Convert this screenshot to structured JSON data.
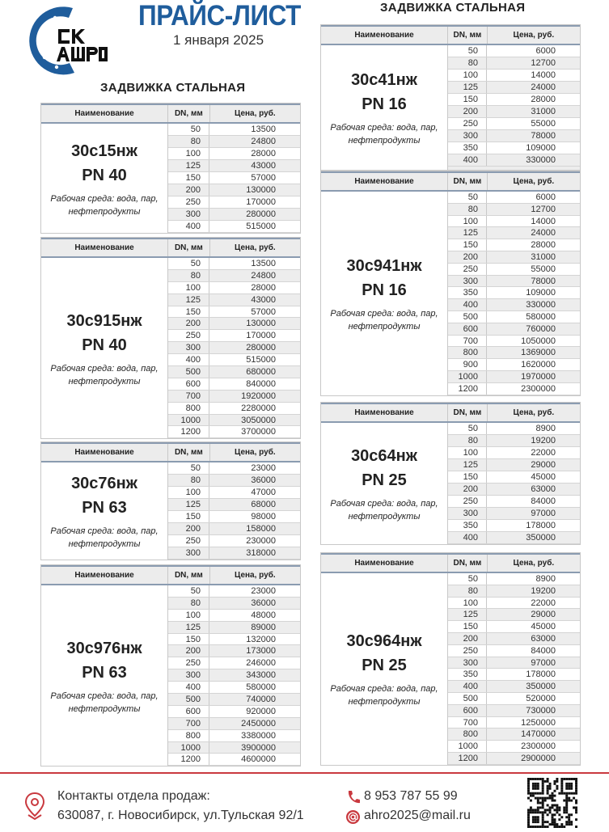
{
  "header": {
    "logo_text": [
      "СК",
      "АШРО"
    ],
    "title": "ПРАЙС-ЛИСТ",
    "date": "1 января 2025",
    "brand_color": "#1f5d9c"
  },
  "sections": {
    "left_heading": "ЗАДВИЖКА СТАЛЬНАЯ",
    "right_heading": "ЗАДВИЖКА СТАЛЬНАЯ"
  },
  "columns": {
    "name": "Наименование",
    "dn": "DN, мм",
    "price": "Цена, руб."
  },
  "tables": [
    {
      "model": "30с15нж",
      "pn": "PN 40",
      "note": "Рабочая среда: вода, пар, нефтепродукты",
      "rows": [
        [
          "50",
          "13500"
        ],
        [
          "80",
          "24800"
        ],
        [
          "100",
          "28000"
        ],
        [
          "125",
          "43000"
        ],
        [
          "150",
          "57000"
        ],
        [
          "200",
          "130000"
        ],
        [
          "250",
          "170000"
        ],
        [
          "300",
          "280000"
        ],
        [
          "400",
          "515000"
        ]
      ]
    },
    {
      "model": "30с915нж",
      "pn": "PN 40",
      "note": "Рабочая среда: вода, пар, нефтепродукты",
      "rows": [
        [
          "50",
          "13500"
        ],
        [
          "80",
          "24800"
        ],
        [
          "100",
          "28000"
        ],
        [
          "125",
          "43000"
        ],
        [
          "150",
          "57000"
        ],
        [
          "200",
          "130000"
        ],
        [
          "250",
          "170000"
        ],
        [
          "300",
          "280000"
        ],
        [
          "400",
          "515000"
        ],
        [
          "500",
          "680000"
        ],
        [
          "600",
          "840000"
        ],
        [
          "700",
          "1920000"
        ],
        [
          "800",
          "2280000"
        ],
        [
          "1000",
          "3050000"
        ],
        [
          "1200",
          "3700000"
        ]
      ]
    },
    {
      "model": "30с76нж",
      "pn": "PN 63",
      "note": "Рабочая среда: вода, пар, нефтепродукты",
      "rows": [
        [
          "50",
          "23000"
        ],
        [
          "80",
          "36000"
        ],
        [
          "100",
          "47000"
        ],
        [
          "125",
          "68000"
        ],
        [
          "150",
          "98000"
        ],
        [
          "200",
          "158000"
        ],
        [
          "250",
          "230000"
        ],
        [
          "300",
          "318000"
        ]
      ]
    },
    {
      "model": "30с976нж",
      "pn": "PN 63",
      "note": "Рабочая среда: вода, пар, нефтепродукты",
      "rows": [
        [
          "50",
          "23000"
        ],
        [
          "80",
          "36000"
        ],
        [
          "100",
          "48000"
        ],
        [
          "125",
          "89000"
        ],
        [
          "150",
          "132000"
        ],
        [
          "200",
          "173000"
        ],
        [
          "250",
          "246000"
        ],
        [
          "300",
          "343000"
        ],
        [
          "400",
          "580000"
        ],
        [
          "500",
          "740000"
        ],
        [
          "600",
          "920000"
        ],
        [
          "700",
          "2450000"
        ],
        [
          "800",
          "3380000"
        ],
        [
          "1000",
          "3900000"
        ],
        [
          "1200",
          "4600000"
        ]
      ]
    },
    {
      "model": "30с41нж",
      "pn": "PN 16",
      "note": "Рабочая среда: вода, пар, нефтепродукты",
      "rows": [
        [
          "50",
          "6000"
        ],
        [
          "80",
          "12700"
        ],
        [
          "100",
          "14000"
        ],
        [
          "125",
          "24000"
        ],
        [
          "150",
          "28000"
        ],
        [
          "200",
          "31000"
        ],
        [
          "250",
          "55000"
        ],
        [
          "300",
          "78000"
        ],
        [
          "350",
          "109000"
        ],
        [
          "400",
          "330000"
        ]
      ]
    },
    {
      "model": "30с941нж",
      "pn": "PN 16",
      "note": "Рабочая среда: вода, пар, нефтепродукты",
      "rows": [
        [
          "50",
          "6000"
        ],
        [
          "80",
          "12700"
        ],
        [
          "100",
          "14000"
        ],
        [
          "125",
          "24000"
        ],
        [
          "150",
          "28000"
        ],
        [
          "200",
          "31000"
        ],
        [
          "250",
          "55000"
        ],
        [
          "300",
          "78000"
        ],
        [
          "350",
          "109000"
        ],
        [
          "400",
          "330000"
        ],
        [
          "500",
          "580000"
        ],
        [
          "600",
          "760000"
        ],
        [
          "700",
          "1050000"
        ],
        [
          "800",
          "1369000"
        ],
        [
          "900",
          "1620000"
        ],
        [
          "1000",
          "1970000"
        ],
        [
          "1200",
          "2300000"
        ]
      ]
    },
    {
      "model": "30с64нж",
      "pn": "PN 25",
      "note": "Рабочая среда: вода, пар, нефтепродукты",
      "rows": [
        [
          "50",
          "8900"
        ],
        [
          "80",
          "19200"
        ],
        [
          "100",
          "22000"
        ],
        [
          "125",
          "29000"
        ],
        [
          "150",
          "45000"
        ],
        [
          "200",
          "63000"
        ],
        [
          "250",
          "84000"
        ],
        [
          "300",
          "97000"
        ],
        [
          "350",
          "178000"
        ],
        [
          "400",
          "350000"
        ]
      ]
    },
    {
      "model": "30с964нж",
      "pn": "PN 25",
      "note": "Рабочая среда: вода, пар, нефтепродукты",
      "rows": [
        [
          "50",
          "8900"
        ],
        [
          "80",
          "19200"
        ],
        [
          "100",
          "22000"
        ],
        [
          "125",
          "29000"
        ],
        [
          "150",
          "45000"
        ],
        [
          "200",
          "63000"
        ],
        [
          "250",
          "84000"
        ],
        [
          "300",
          "97000"
        ],
        [
          "350",
          "178000"
        ],
        [
          "400",
          "350000"
        ],
        [
          "500",
          "520000"
        ],
        [
          "600",
          "730000"
        ],
        [
          "700",
          "1250000"
        ],
        [
          "800",
          "1470000"
        ],
        [
          "1000",
          "2300000"
        ],
        [
          "1200",
          "2900000"
        ]
      ]
    }
  ],
  "footer": {
    "contacts_label": "Контакты отдела продаж:",
    "address": "630087, г. Новосибирск, ул.Тульская 92/1",
    "phone": "8 953 787 55 99",
    "email": "ahro2025@mail.ru",
    "accent_color": "#c9393f",
    "icons": [
      "location-pin-icon",
      "phone-icon",
      "email-at-icon",
      "qr-code"
    ]
  }
}
